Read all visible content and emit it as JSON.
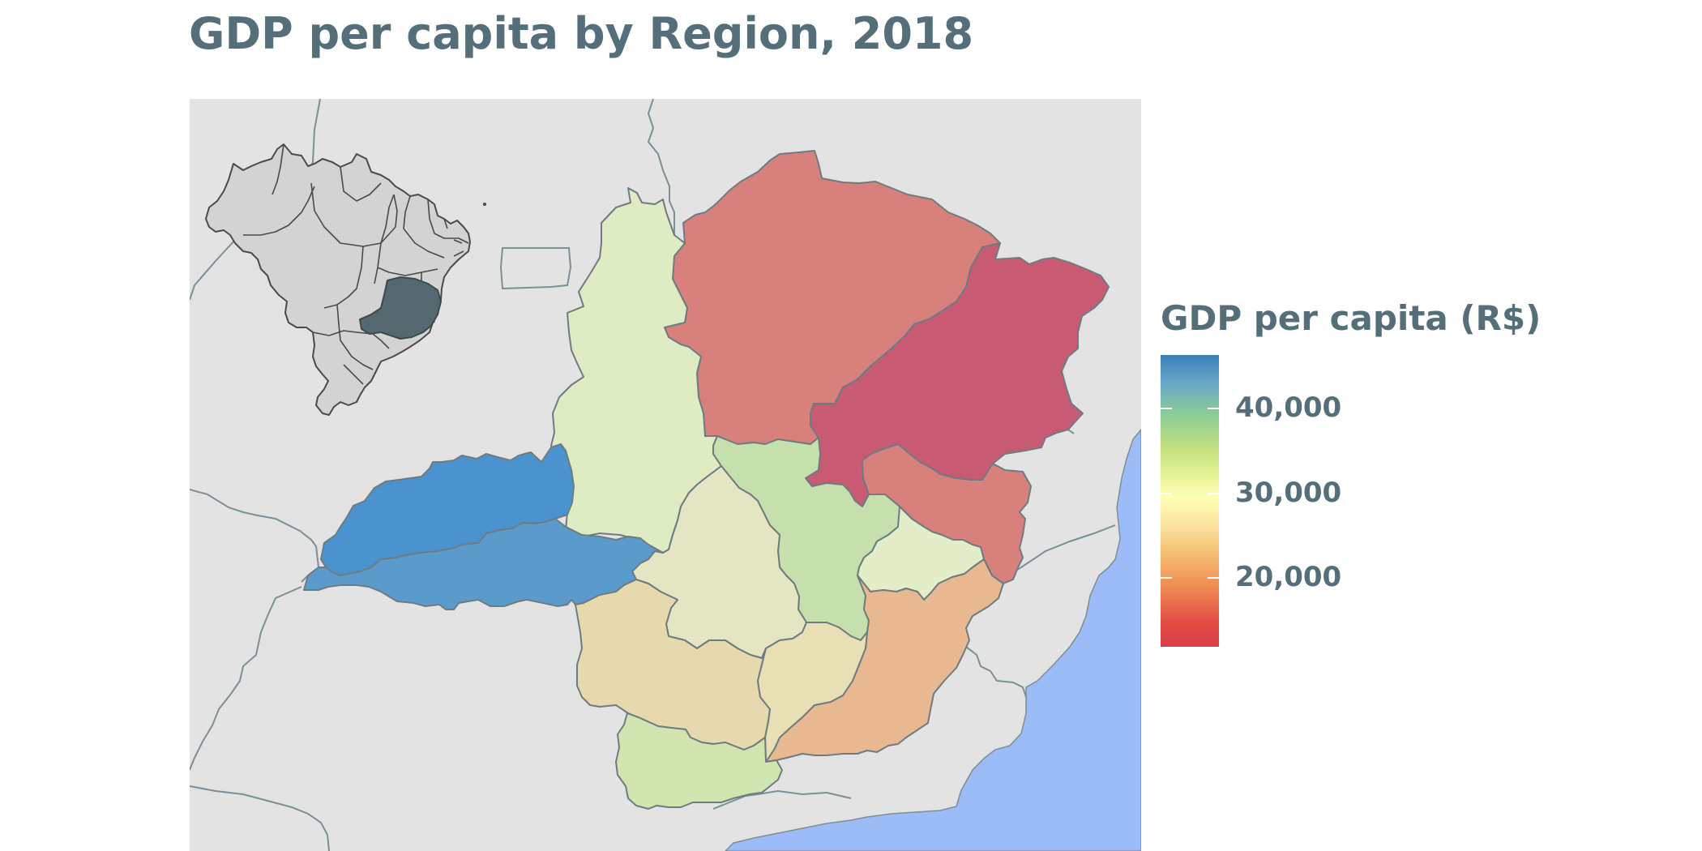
{
  "title": "GDP per capita by Region, 2018",
  "legend": {
    "title": "GDP per capita (R$)",
    "ticks": [
      {
        "label": "40,000",
        "value": 40000
      },
      {
        "label": "30,000",
        "value": 30000
      },
      {
        "label": "20,000",
        "value": 20000
      }
    ],
    "scale_min": 11000,
    "scale_max": 47000,
    "colorscale": "Spectral"
  },
  "colors": {
    "background_panel": "#e3e3e3",
    "ocean": "#9bbcf7",
    "inset_state_highlight": "#56686f",
    "inset_states": "#d3d3d3",
    "text": "#546e7a"
  },
  "regions": [
    {
      "name": "region-north",
      "color": "#d8807c"
    },
    {
      "name": "region-northeast",
      "color": "#c85a74"
    },
    {
      "name": "region-east",
      "color": "#d8807c"
    },
    {
      "name": "region-northwest",
      "color": "#dfebc2"
    },
    {
      "name": "region-center",
      "color": "#c5e0ac"
    },
    {
      "name": "region-rio-doce-small",
      "color": "#e3edc8"
    },
    {
      "name": "region-zona-da-mata",
      "color": "#e8b890"
    },
    {
      "name": "region-west-center",
      "color": "#e4e5c2"
    },
    {
      "name": "region-triangulo-north",
      "color": "#4b93cf"
    },
    {
      "name": "region-triangulo-south",
      "color": "#5b9bcc"
    },
    {
      "name": "region-south-west",
      "color": "#e6d9ae"
    },
    {
      "name": "region-campo-das-vertentes",
      "color": "#e8e0b4"
    },
    {
      "name": "region-south",
      "color": "#d2e4b0"
    }
  ]
}
